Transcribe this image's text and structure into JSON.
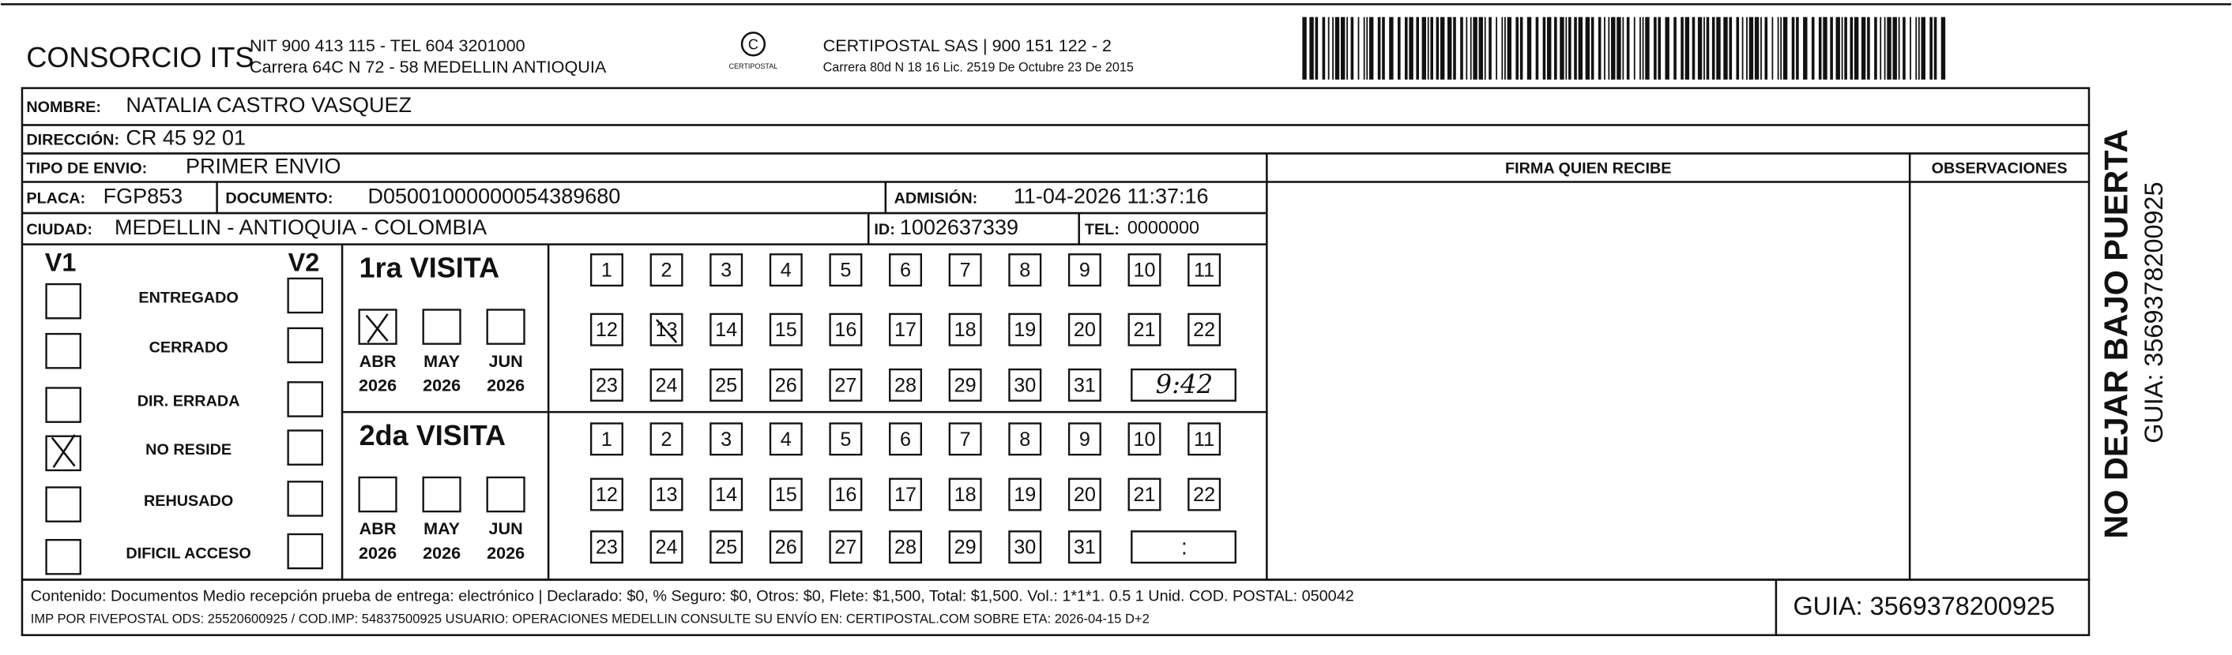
{
  "header": {
    "company": "CONSORCIO ITS",
    "company_line1": "NIT 900 413 115 - TEL 604 3201000",
    "company_line2": "Carrera 64C N 72 - 58 MEDELLIN ANTIOQUIA",
    "logo_text": "CERTIPOSTAL",
    "carrier_line1": "CERTIPOSTAL SAS | 900 151 122 - 2",
    "carrier_line2": "Carrera 80d N 18 16  Lic. 2519 De Octubre 23 De 2015"
  },
  "recipient": {
    "name_label": "NOMBRE:",
    "name": "NATALIA CASTRO VASQUEZ",
    "address_label": "DIRECCIÓN:",
    "address": "CR 45   92 01",
    "type_label": "TIPO DE ENVIO:",
    "type": "PRIMER ENVIO",
    "plate_label": "PLACA:",
    "plate": "FGP853",
    "document_label": "DOCUMENTO:",
    "document": "D05001000000054389680",
    "admission_label": "ADMISIÓN:",
    "admission": "11-04-2026 11:37:16",
    "city_label": "CIUDAD:",
    "city": "MEDELLIN - ANTIOQUIA - COLOMBIA",
    "id_label": "ID:",
    "id": "1002637339",
    "phone_label": "TEL:",
    "phone": "0000000"
  },
  "signature_label": "FIRMA QUIEN RECIBE",
  "observations_label": "OBSERVACIONES",
  "status": {
    "v1_label": "V1",
    "v2_label": "V2",
    "options": [
      "ENTREGADO",
      "CERRADO",
      "DIR. ERRADA",
      "NO RESIDE",
      "REHUSADO",
      "DIFICIL ACCESO"
    ]
  },
  "visits": [
    {
      "title": "1ra VISITA",
      "months": [
        "ABR",
        "MAY",
        "JUN"
      ],
      "years": [
        2026,
        2026,
        2026
      ],
      "days": [
        1,
        2,
        3,
        4,
        5,
        6,
        7,
        8,
        9,
        10,
        11,
        12,
        13,
        14,
        15,
        16,
        17,
        18,
        19,
        20,
        21,
        22,
        23,
        24,
        25,
        26,
        27,
        28,
        29,
        30,
        31
      ],
      "time": "9:42"
    },
    {
      "title": "2da VISITA",
      "months": [
        "ABR",
        "MAY",
        "JUN"
      ],
      "years": [
        2026,
        2026,
        2026
      ],
      "days": [
        1,
        2,
        3,
        4,
        5,
        6,
        7,
        8,
        9,
        10,
        11,
        12,
        13,
        14,
        15,
        16,
        17,
        18,
        19,
        20,
        21,
        22,
        23,
        24,
        25,
        26,
        27,
        28,
        29,
        30,
        31
      ],
      "time": ":"
    }
  ],
  "footer": {
    "line1": "Contenido: Documentos Medio recepción prueba de entrega: electrónico | Declarado: $0, % Seguro: $0, Otros: $0, Flete: $1,500, Total: $1,500. Vol.: 1*1*1. 0.5  1 Unid. COD. POSTAL: 050042",
    "line2": "IMP POR FIVEPOSTAL ODS: 25520600925 / COD.IMP: 54837500925 USUARIO: OPERACIONES MEDELLIN CONSULTE SU ENVÍO EN: CERTIPOSTAL.COM SOBRE ETA: 2026-04-15 D+2",
    "guide": "GUIA: 3569378200925"
  },
  "side": {
    "warning": "NO DEJAR BAJO PUERTA",
    "guide": "GUIA: 3569378200925"
  }
}
